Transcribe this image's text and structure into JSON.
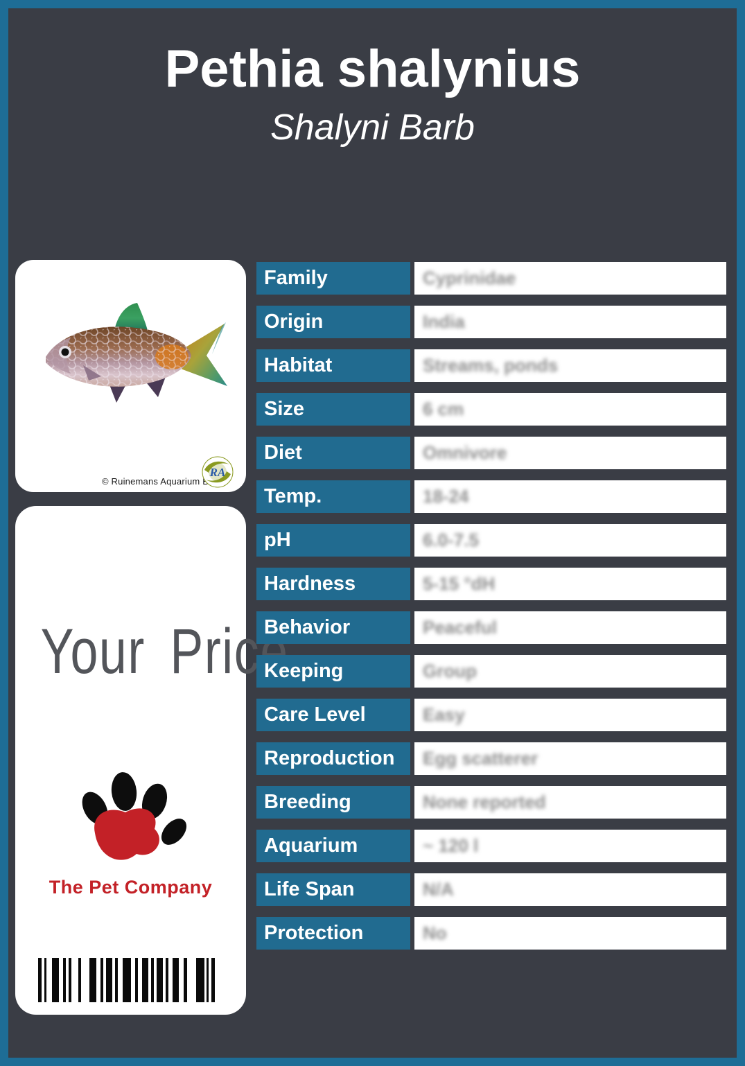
{
  "header": {
    "title": "Pethia shalynius",
    "subtitle": "Shalyni Barb"
  },
  "photo_card": {
    "copyright": "© Ruinemans Aquarium BV",
    "logo_monogram": "RA"
  },
  "price_card": {
    "price_label": "Your Price",
    "company_name": "The Pet Company"
  },
  "table": {
    "rows": [
      {
        "label": "Family",
        "value": "Cyprinidae"
      },
      {
        "label": "Origin",
        "value": "India"
      },
      {
        "label": "Habitat",
        "value": "Streams, ponds"
      },
      {
        "label": "Size",
        "value": "6 cm"
      },
      {
        "label": "Diet",
        "value": "Omnivore"
      },
      {
        "label": "Temp.",
        "value": "18-24"
      },
      {
        "label": "pH",
        "value": "6.0-7.5"
      },
      {
        "label": "Hardness",
        "value": "5-15 °dH"
      },
      {
        "label": "Behavior",
        "value": "Peaceful"
      },
      {
        "label": "Keeping",
        "value": "Group"
      },
      {
        "label": "Care Level",
        "value": "Easy"
      },
      {
        "label": "Reproduction",
        "value": "Egg scatterer"
      },
      {
        "label": "Breeding",
        "value": "None reported"
      },
      {
        "label": "Aquarium",
        "value": "~ 120 l"
      },
      {
        "label": "Life Span",
        "value": "N/A"
      },
      {
        "label": "Protection",
        "value": "No"
      }
    ]
  },
  "colors": {
    "accent_blue": "#216b90",
    "frame_blue": "#1e6d96",
    "background_charcoal": "#3a3d45",
    "brand_red": "#c32127",
    "price_gray": "#53555a"
  }
}
